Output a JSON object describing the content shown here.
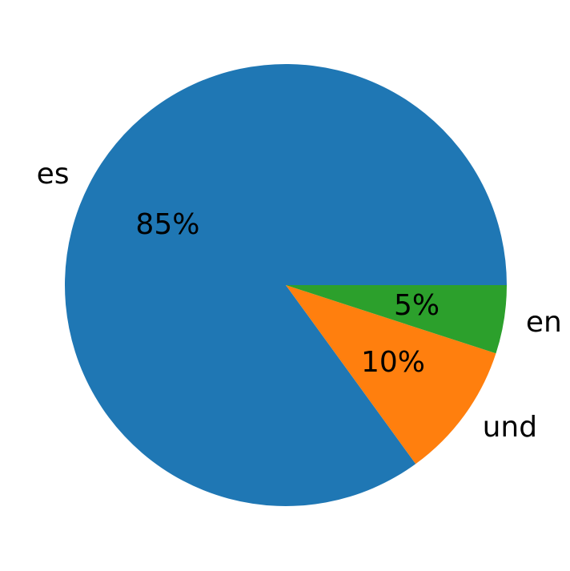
{
  "figure": {
    "background": "#ffffff",
    "text_color": "#000000"
  },
  "chart_data": {
    "type": "pie",
    "title": "",
    "labels": [
      "es",
      "und",
      "en"
    ],
    "values": [
      85,
      10,
      5
    ],
    "pct_labels": [
      "85%",
      "10%",
      "5%"
    ],
    "colors": [
      "#1f77b4",
      "#ff7f0e",
      "#2ca02c"
    ],
    "start_angle": 0,
    "counterclock": true,
    "label_distance": 1.1,
    "pct_distance": 0.6,
    "legend_position": "none",
    "grid": false
  }
}
